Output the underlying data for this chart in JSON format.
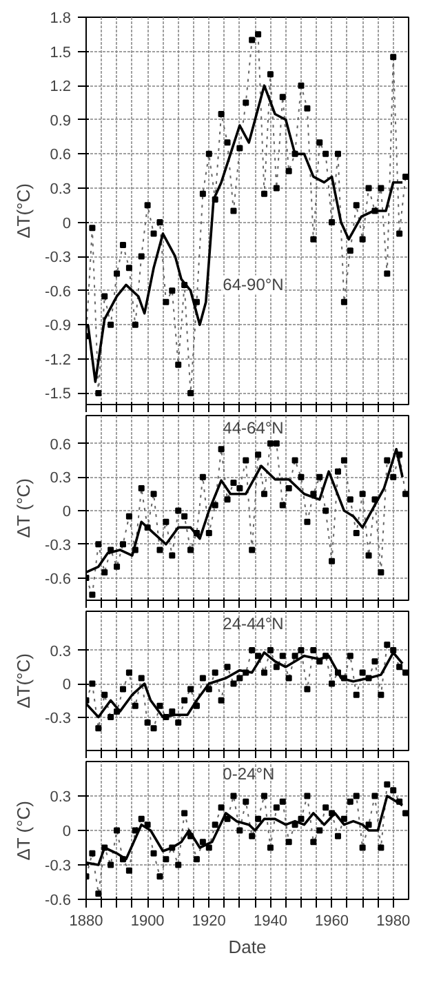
{
  "chart_data": [
    {
      "type": "line",
      "ylabel": "ΔT(°C)",
      "annotations": [
        "64-90°N"
      ],
      "xlim": [
        1880,
        1985
      ],
      "ylim": [
        -1.6,
        1.8
      ],
      "tick_labels": "y",
      "grid": true,
      "xticks": [
        1880,
        {
          "value": 1885,
          "label": null
        },
        {
          "value": 1890,
          "label": null
        },
        {
          "value": 1895,
          "label": null
        },
        1900,
        {
          "value": 1905,
          "label": null
        },
        {
          "value": 1910,
          "label": null
        },
        {
          "value": 1915,
          "label": null
        },
        1920,
        {
          "value": 1925,
          "label": null
        },
        {
          "value": 1930,
          "label": null
        },
        {
          "value": 1935,
          "label": null
        },
        1940,
        {
          "value": 1945,
          "label": null
        },
        {
          "value": 1950,
          "label": null
        },
        {
          "value": 1955,
          "label": null
        },
        1960,
        {
          "value": 1965,
          "label": null
        },
        {
          "value": 1970,
          "label": null
        },
        {
          "value": 1975,
          "label": null
        },
        1980
      ],
      "yticks": [
        {
          "value": -1.5,
          "label": "-1.5"
        },
        {
          "value": -1.2,
          "label": "-1.2"
        },
        {
          "value": -0.9,
          "label": "-0.9"
        },
        {
          "value": -0.6,
          "label": "-0.6"
        },
        {
          "value": -0.3,
          "label": "-0.3"
        },
        0,
        {
          "value": 0.3,
          "label": "0.3"
        },
        {
          "value": 0.6,
          "label": "0.6"
        },
        {
          "value": 0.9,
          "label": "0.9"
        },
        {
          "value": 1.2,
          "label": "1.2"
        },
        {
          "value": 1.5,
          "label": "1.5"
        },
        {
          "value": 1.8,
          "label": "1.8"
        }
      ],
      "x": [
        1880,
        1882,
        1884,
        1886,
        1888,
        1890,
        1892,
        1894,
        1896,
        1898,
        1900,
        1902,
        1904,
        1906,
        1908,
        1910,
        1912,
        1914,
        1916,
        1918,
        1920,
        1922,
        1924,
        1926,
        1928,
        1930,
        1932,
        1934,
        1936,
        1938,
        1940,
        1942,
        1944,
        1946,
        1948,
        1950,
        1952,
        1954,
        1956,
        1958,
        1960,
        1962,
        1964,
        1966,
        1968,
        1970,
        1972,
        1974,
        1976,
        1978,
        1980,
        1982,
        1984
      ],
      "series": [
        {
          "color": "#666666",
          "line_style": "dotted",
          "marker": "square",
          "values": [
            -1.0,
            -0.05,
            -1.5,
            -0.65,
            -0.9,
            -0.45,
            -0.2,
            -0.4,
            -0.9,
            -0.3,
            0.15,
            -0.1,
            0.0,
            -0.7,
            -0.6,
            -1.25,
            -0.55,
            -1.5,
            -0.7,
            0.25,
            0.6,
            0.2,
            0.95,
            0.7,
            0.1,
            0.65,
            1.05,
            1.6,
            1.65,
            0.25,
            1.3,
            0.3,
            1.1,
            0.45,
            0.6,
            1.2,
            1.0,
            -0.15,
            0.7,
            0.6,
            0.0,
            0.6,
            -0.7,
            -0.25,
            0.15,
            -0.15,
            0.3,
            0.1,
            0.3,
            -0.45,
            1.45,
            -0.1,
            0.4
          ]
        },
        {
          "color": "#000000",
          "line_style": "solid",
          "marker": "none",
          "x": [
            1880.6,
            1883,
            1886,
            1890,
            1893,
            1897,
            1899,
            1902,
            1905,
            1909,
            1911,
            1914,
            1917,
            1919,
            1921.5,
            1924,
            1927,
            1930,
            1933,
            1935,
            1938,
            1941.5,
            1945,
            1948,
            1951,
            1954,
            1957.5,
            1960,
            1963,
            1965.5,
            1969.6,
            1973.6,
            1977.6,
            1980,
            1983
          ],
          "values": [
            -0.9,
            -1.4,
            -0.85,
            -0.65,
            -0.55,
            -0.65,
            -0.8,
            -0.4,
            -0.1,
            -0.3,
            -0.5,
            -0.6,
            -0.9,
            -0.7,
            0.2,
            0.35,
            0.6,
            0.85,
            0.7,
            0.9,
            1.2,
            0.95,
            0.9,
            0.6,
            0.6,
            0.4,
            0.35,
            0.4,
            0.0,
            -0.15,
            0.05,
            0.1,
            0.1,
            0.35,
            0.35
          ]
        }
      ]
    },
    {
      "type": "line",
      "ylabel": "ΔT (°C)",
      "annotations": [
        "44-64°N"
      ],
      "xlim": [
        1880,
        1985
      ],
      "ylim": [
        -0.8,
        0.85
      ],
      "tick_labels": "y",
      "grid": true,
      "xticks": [
        1880,
        {
          "value": 1885,
          "label": null
        },
        {
          "value": 1890,
          "label": null
        },
        {
          "value": 1895,
          "label": null
        },
        1900,
        {
          "value": 1905,
          "label": null
        },
        {
          "value": 1910,
          "label": null
        },
        {
          "value": 1915,
          "label": null
        },
        1920,
        {
          "value": 1925,
          "label": null
        },
        {
          "value": 1930,
          "label": null
        },
        {
          "value": 1935,
          "label": null
        },
        1940,
        {
          "value": 1945,
          "label": null
        },
        {
          "value": 1950,
          "label": null
        },
        {
          "value": 1955,
          "label": null
        },
        1960,
        {
          "value": 1965,
          "label": null
        },
        {
          "value": 1970,
          "label": null
        },
        {
          "value": 1975,
          "label": null
        },
        1980
      ],
      "yticks": [
        {
          "value": -0.6,
          "label": "-0.6"
        },
        {
          "value": -0.3,
          "label": "-0.3"
        },
        0,
        {
          "value": 0.3,
          "label": "0.3"
        },
        {
          "value": 0.6,
          "label": "0.6"
        }
      ],
      "x": [
        1880,
        1882,
        1884,
        1886,
        1888,
        1890,
        1892,
        1894,
        1896,
        1898,
        1900,
        1902,
        1904,
        1906,
        1908,
        1910,
        1912,
        1914,
        1916,
        1918,
        1920,
        1922,
        1924,
        1926,
        1928,
        1930,
        1932,
        1934,
        1936,
        1938,
        1940,
        1942,
        1944,
        1946,
        1948,
        1950,
        1952,
        1954,
        1956,
        1958,
        1960,
        1962,
        1964,
        1966,
        1968,
        1970,
        1972,
        1974,
        1976,
        1978,
        1980,
        1982,
        1984
      ],
      "series": [
        {
          "color": "#666666",
          "line_style": "dotted",
          "marker": "square",
          "values": [
            -0.6,
            -0.75,
            -0.3,
            -0.55,
            -0.35,
            -0.5,
            -0.3,
            -0.05,
            -0.35,
            0.2,
            -0.15,
            0.15,
            -0.35,
            -0.1,
            -0.4,
            0.0,
            -0.05,
            -0.35,
            -0.2,
            0.3,
            -0.2,
            0.05,
            0.55,
            0.1,
            0.25,
            0.2,
            0.45,
            -0.35,
            0.5,
            0.15,
            0.6,
            0.6,
            0.05,
            0.2,
            0.45,
            0.3,
            -0.1,
            0.15,
            0.3,
            0.0,
            -0.45,
            0.35,
            0.45,
            0.1,
            -0.2,
            0.15,
            -0.4,
            0.1,
            -0.55,
            0.45,
            0.3,
            0.5,
            0.15
          ]
        },
        {
          "color": "#000000",
          "line_style": "solid",
          "marker": "none",
          "x": [
            1880,
            1884,
            1887,
            1891,
            1895,
            1898,
            1902,
            1906,
            1910,
            1914,
            1917,
            1920,
            1924,
            1927,
            1932,
            1937,
            1941.5,
            1946,
            1951,
            1956,
            1959,
            1964,
            1967,
            1970,
            1974,
            1977,
            1981,
            1983
          ],
          "values": [
            -0.55,
            -0.5,
            -0.38,
            -0.35,
            -0.4,
            -0.1,
            -0.2,
            -0.3,
            -0.15,
            -0.15,
            -0.25,
            0.0,
            0.27,
            0.15,
            0.15,
            0.4,
            0.28,
            0.28,
            0.15,
            0.1,
            0.35,
            0.0,
            -0.05,
            -0.15,
            0.05,
            0.2,
            0.55,
            0.3
          ]
        }
      ]
    },
    {
      "type": "line",
      "ylabel": "ΔT(°C)",
      "annotations": [
        "24-44°N"
      ],
      "xlim": [
        1880,
        1985
      ],
      "ylim": [
        -0.6,
        0.65
      ],
      "tick_labels": "y",
      "grid": true,
      "xticks": [
        1880,
        {
          "value": 1885,
          "label": null
        },
        {
          "value": 1890,
          "label": null
        },
        {
          "value": 1895,
          "label": null
        },
        1900,
        {
          "value": 1905,
          "label": null
        },
        {
          "value": 1910,
          "label": null
        },
        {
          "value": 1915,
          "label": null
        },
        1920,
        {
          "value": 1925,
          "label": null
        },
        {
          "value": 1930,
          "label": null
        },
        {
          "value": 1935,
          "label": null
        },
        1940,
        {
          "value": 1945,
          "label": null
        },
        {
          "value": 1950,
          "label": null
        },
        {
          "value": 1955,
          "label": null
        },
        1960,
        {
          "value": 1965,
          "label": null
        },
        {
          "value": 1970,
          "label": null
        },
        {
          "value": 1975,
          "label": null
        },
        1980
      ],
      "yticks": [
        {
          "value": -0.3,
          "label": "-0.3"
        },
        0,
        {
          "value": 0.3,
          "label": "0.3"
        }
      ],
      "x": [
        1880,
        1882,
        1884,
        1886,
        1888,
        1890,
        1892,
        1894,
        1896,
        1898,
        1900,
        1902,
        1904,
        1906,
        1908,
        1910,
        1912,
        1914,
        1916,
        1918,
        1920,
        1922,
        1924,
        1926,
        1928,
        1930,
        1932,
        1934,
        1936,
        1938,
        1940,
        1942,
        1944,
        1946,
        1948,
        1950,
        1952,
        1954,
        1956,
        1958,
        1960,
        1962,
        1964,
        1966,
        1968,
        1970,
        1972,
        1974,
        1976,
        1978,
        1980,
        1982,
        1984
      ],
      "series": [
        {
          "color": "#666666",
          "line_style": "dotted",
          "marker": "square",
          "values": [
            -0.15,
            0.0,
            -0.4,
            -0.1,
            -0.3,
            -0.25,
            -0.05,
            0.1,
            -0.2,
            0.05,
            -0.35,
            -0.4,
            -0.2,
            -0.3,
            -0.25,
            -0.35,
            -0.15,
            -0.05,
            -0.2,
            0.05,
            -0.05,
            0.1,
            -0.15,
            0.15,
            0.0,
            0.05,
            0.1,
            0.3,
            0.25,
            0.1,
            0.3,
            0.15,
            0.25,
            0.05,
            0.25,
            0.3,
            -0.05,
            0.3,
            0.2,
            0.25,
            0.0,
            0.1,
            0.05,
            0.25,
            -0.1,
            0.1,
            0.05,
            0.2,
            -0.1,
            0.35,
            0.3,
            0.15,
            0.1
          ]
        },
        {
          "color": "#000000",
          "line_style": "solid",
          "marker": "none",
          "x": [
            1880,
            1884,
            1888,
            1891,
            1895,
            1899,
            1901,
            1905,
            1909,
            1913,
            1916,
            1920,
            1925.5,
            1930,
            1934,
            1938,
            1941.5,
            1945,
            1948,
            1951,
            1956,
            1959,
            1963,
            1967,
            1972,
            1976,
            1980,
            1983
          ],
          "values": [
            -0.18,
            -0.3,
            -0.15,
            -0.25,
            -0.1,
            0.0,
            -0.15,
            -0.3,
            -0.28,
            -0.28,
            -0.15,
            0.0,
            0.05,
            0.12,
            0.1,
            0.28,
            0.2,
            0.15,
            0.2,
            0.25,
            0.22,
            0.25,
            0.05,
            0.02,
            0.05,
            0.08,
            0.28,
            0.18
          ]
        }
      ]
    },
    {
      "type": "line",
      "xlabel": "Date",
      "ylabel": "ΔT (°C)",
      "annotations": [
        "0-24°N"
      ],
      "xlim": [
        1880,
        1985
      ],
      "ylim": [
        -0.6,
        0.6
      ],
      "grid": true,
      "xticks": [
        1880,
        {
          "value": 1885,
          "label": null
        },
        {
          "value": 1890,
          "label": null
        },
        {
          "value": 1895,
          "label": null
        },
        1900,
        {
          "value": 1905,
          "label": null
        },
        {
          "value": 1910,
          "label": null
        },
        {
          "value": 1915,
          "label": null
        },
        1920,
        {
          "value": 1925,
          "label": null
        },
        {
          "value": 1930,
          "label": null
        },
        {
          "value": 1935,
          "label": null
        },
        1940,
        {
          "value": 1945,
          "label": null
        },
        {
          "value": 1950,
          "label": null
        },
        {
          "value": 1955,
          "label": null
        },
        1960,
        {
          "value": 1965,
          "label": null
        },
        {
          "value": 1970,
          "label": null
        },
        {
          "value": 1975,
          "label": null
        },
        1980
      ],
      "yticks": [
        {
          "value": -0.6,
          "label": "-0.6"
        },
        {
          "value": -0.3,
          "label": "-0.3"
        },
        0,
        {
          "value": 0.3,
          "label": "0.3"
        }
      ],
      "x": [
        1880,
        1882,
        1884,
        1886,
        1888,
        1890,
        1892,
        1894,
        1896,
        1898,
        1900,
        1902,
        1904,
        1906,
        1908,
        1910,
        1912,
        1914,
        1916,
        1918,
        1920,
        1922,
        1924,
        1926,
        1928,
        1930,
        1932,
        1934,
        1936,
        1938,
        1940,
        1942,
        1944,
        1946,
        1948,
        1950,
        1952,
        1954,
        1956,
        1958,
        1960,
        1962,
        1964,
        1966,
        1968,
        1970,
        1972,
        1974,
        1976,
        1978,
        1980,
        1982,
        1984
      ],
      "series": [
        {
          "color": "#666666",
          "line_style": "dotted",
          "marker": "square",
          "values": [
            -0.4,
            -0.2,
            -0.55,
            -0.15,
            -0.3,
            0.0,
            -0.25,
            -0.35,
            0.0,
            0.1,
            0.05,
            -0.2,
            -0.4,
            -0.25,
            -0.15,
            -0.3,
            0.15,
            -0.05,
            -0.25,
            -0.1,
            -0.15,
            0.05,
            0.2,
            0.1,
            0.3,
            0.0,
            0.25,
            -0.05,
            0.1,
            0.3,
            -0.15,
            0.2,
            0.25,
            -0.1,
            0.05,
            0.1,
            0.3,
            -0.1,
            0.0,
            0.2,
            0.15,
            -0.05,
            0.1,
            0.25,
            0.3,
            -0.15,
            0.05,
            0.3,
            -0.15,
            0.4,
            0.35,
            0.25,
            0.15
          ]
        },
        {
          "color": "#000000",
          "line_style": "solid",
          "marker": "none",
          "x": [
            1880,
            1884,
            1886,
            1890,
            1893,
            1898,
            1901,
            1905,
            1908,
            1911,
            1913.5,
            1917,
            1921,
            1925.5,
            1929,
            1933,
            1935,
            1938,
            1941.5,
            1945,
            1948,
            1951,
            1954,
            1957.5,
            1961,
            1964,
            1967,
            1970,
            1972,
            1975,
            1978,
            1983
          ],
          "values": [
            -0.28,
            -0.3,
            -0.15,
            -0.2,
            -0.25,
            0.05,
            0.0,
            -0.18,
            -0.15,
            -0.1,
            0.0,
            -0.15,
            -0.1,
            0.15,
            0.08,
            0.05,
            0.0,
            0.1,
            0.1,
            0.05,
            0.08,
            0.05,
            0.15,
            0.05,
            0.15,
            0.05,
            0.08,
            0.05,
            0.0,
            0.0,
            0.3,
            0.22
          ]
        }
      ]
    }
  ]
}
